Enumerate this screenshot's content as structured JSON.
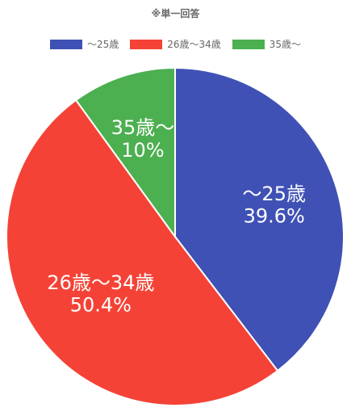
{
  "chart_data": {
    "type": "pie",
    "title": "※単一回答",
    "slices": [
      {
        "label": "～25歳",
        "value": 39.6,
        "display_value": "39.6%",
        "color": "#3f51b5"
      },
      {
        "label": "26歳～34歳",
        "value": 50.4,
        "display_value": "50.4%",
        "color": "#f44336"
      },
      {
        "label": "35歳～",
        "value": 10,
        "display_value": "10%",
        "color": "#4caf50"
      }
    ],
    "legend_position": "top",
    "start_angle": "12 o'clock",
    "direction": "clockwise"
  }
}
